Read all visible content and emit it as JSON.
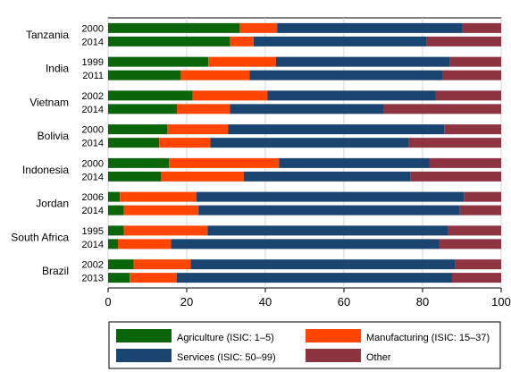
{
  "chart_data": {
    "type": "bar",
    "orientation": "horizontal",
    "stacked": true,
    "xlim": [
      0,
      100
    ],
    "x_ticks": [
      "0",
      "20",
      "40",
      "60",
      "80",
      "100"
    ],
    "grid": true,
    "legend_position": "bottom",
    "series": [
      {
        "name": "Agriculture (ISIC: 1–5)",
        "color": "#0b660b"
      },
      {
        "name": "Manufacturing (ISIC: 15–37)",
        "color": "#ff4500"
      },
      {
        "name": "Services (ISIC: 50–99)",
        "color": "#1b4571"
      },
      {
        "name": "Other",
        "color": "#8e3340"
      }
    ],
    "groups": [
      {
        "country": "Tanzania",
        "bars": [
          {
            "year": "2000",
            "values": [
              33.5,
              9.5,
              47.2,
              9.8
            ]
          },
          {
            "year": "2014",
            "values": [
              31,
              6,
              44,
              19
            ]
          }
        ]
      },
      {
        "country": "India",
        "bars": [
          {
            "year": "1999",
            "values": [
              25.5,
              17.2,
              44.3,
              13
            ]
          },
          {
            "year": "2011",
            "values": [
              18.5,
              17.5,
              49,
              15
            ]
          }
        ]
      },
      {
        "country": "Vietnam",
        "bars": [
          {
            "year": "2002",
            "values": [
              21.5,
              19,
              42.8,
              16.7
            ]
          },
          {
            "year": "2014",
            "values": [
              17.5,
              13.5,
              39,
              30
            ]
          }
        ]
      },
      {
        "country": "Bolivia",
        "bars": [
          {
            "year": "2000",
            "values": [
              15,
              15.5,
              55,
              14.5
            ]
          },
          {
            "year": "2014",
            "values": [
              13,
              13,
              50.5,
              23.5
            ]
          }
        ]
      },
      {
        "country": "Indonesia",
        "bars": [
          {
            "year": "2000",
            "values": [
              15.5,
              28,
              38.2,
              18.3
            ]
          },
          {
            "year": "2014",
            "values": [
              13.5,
              21,
              42.5,
              23
            ]
          }
        ]
      },
      {
        "country": "Jordan",
        "bars": [
          {
            "year": "2006",
            "values": [
              3,
              19.5,
              68,
              9.5
            ]
          },
          {
            "year": "2014",
            "values": [
              4,
              19,
              66.5,
              10.5
            ]
          }
        ]
      },
      {
        "country": "South Africa",
        "bars": [
          {
            "year": "1995",
            "values": [
              4,
              21.3,
              61.2,
              13.5
            ]
          },
          {
            "year": "2014",
            "values": [
              2.5,
              13.5,
              68.2,
              15.8
            ]
          }
        ]
      },
      {
        "country": "Brazil",
        "bars": [
          {
            "year": "2002",
            "values": [
              6.5,
              14.5,
              67.2,
              11.8
            ]
          },
          {
            "year": "2013",
            "values": [
              5.5,
              12,
              70,
              12.5
            ]
          }
        ]
      }
    ]
  }
}
